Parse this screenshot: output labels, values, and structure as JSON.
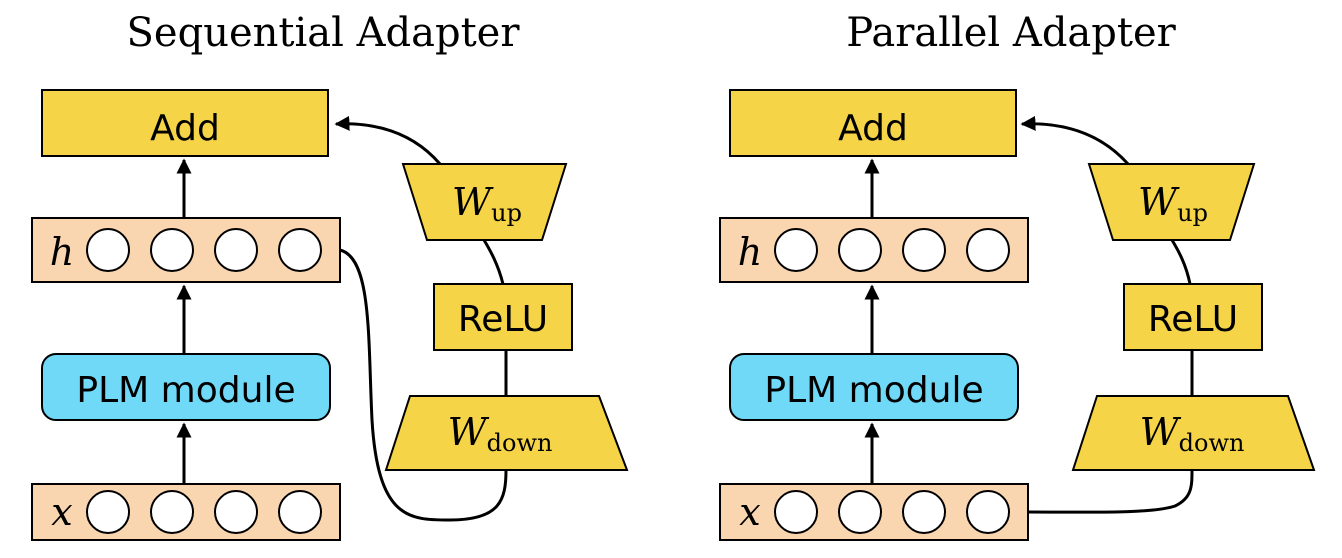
{
  "colors": {
    "yellow": "#F5D547",
    "peach": "#FAD6B0",
    "blue": "#6FD9F7",
    "stroke": "#000000"
  },
  "diagrams": [
    {
      "title": "Sequential Adapter",
      "add_label": "Add",
      "h_label": "h",
      "x_label": "x",
      "plm_label": "PLM module",
      "relu_label": "ReLU",
      "w_up": {
        "main": "W",
        "sub": "up"
      },
      "w_down": {
        "main": "W",
        "sub": "down"
      },
      "neuron_count": 4,
      "adapter_input": "h"
    },
    {
      "title": "Parallel Adapter",
      "add_label": "Add",
      "h_label": "h",
      "x_label": "x",
      "plm_label": "PLM module",
      "relu_label": "ReLU",
      "w_up": {
        "main": "W",
        "sub": "up"
      },
      "w_down": {
        "main": "W",
        "sub": "down"
      },
      "neuron_count": 4,
      "adapter_input": "x"
    }
  ]
}
